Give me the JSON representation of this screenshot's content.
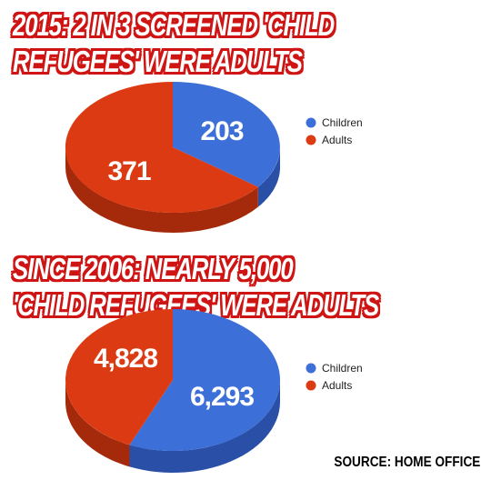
{
  "headlines": [
    {
      "lines": [
        "2015:  2 IN 3 SCREENED 'CHILD",
        "REFUGEES' WERE ADULTS"
      ]
    },
    {
      "lines": [
        "SINCE 2006: NEARLY 5,000",
        "'CHILD REFUGEES' WERE ADULTS"
      ]
    }
  ],
  "source": "SOURCE: HOME OFFICE",
  "colors": {
    "children": "#3d6fd8",
    "children_side": "#2a4fa6",
    "adults": "#dc3a12",
    "adults_side": "#a52a0b",
    "headline_outline": "#cf1414"
  },
  "chart_data": [
    {
      "type": "pie",
      "categories": [
        "Children",
        "Adults"
      ],
      "values": [
        203,
        371
      ],
      "data_labels": [
        "203",
        "371"
      ],
      "legend": [
        "Children",
        "Adults"
      ],
      "legend_position": "right",
      "style": "3d"
    },
    {
      "type": "pie",
      "categories": [
        "Children",
        "Adults"
      ],
      "values": [
        6293,
        4828
      ],
      "data_labels": [
        "6,293",
        "4,828"
      ],
      "legend": [
        "Children",
        "Adults"
      ],
      "legend_position": "right",
      "style": "3d"
    }
  ]
}
